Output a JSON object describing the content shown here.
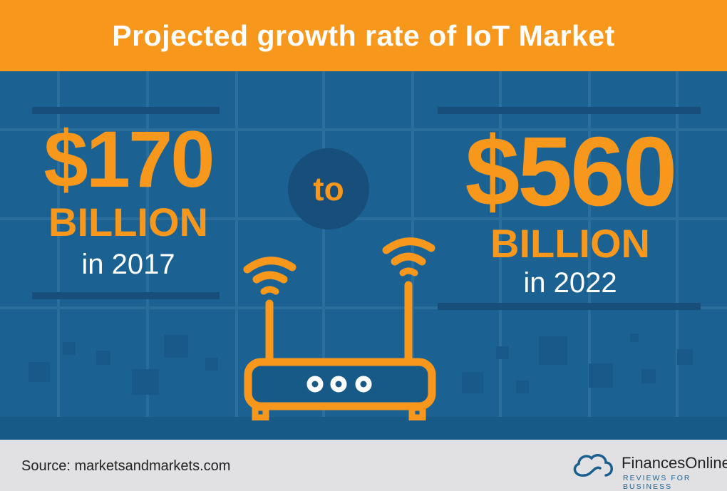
{
  "title": "Projected growth rate of IoT Market",
  "left": {
    "amount": "$170",
    "unit": "BILLION",
    "year_text": "in 2017"
  },
  "connector": "to",
  "right": {
    "amount": "$560",
    "unit": "BILLION",
    "year_text": "in 2022"
  },
  "footer": {
    "source": "Source: marketsandmarkets.com",
    "brand": "FinancesOnline",
    "tagline": "REVIEWS FOR BUSINESS"
  },
  "colors": {
    "accent": "#f7981d",
    "background": "#1b6293",
    "footer": "#e1e1e3"
  },
  "icons": [
    "wifi-router-icon",
    "cloud-logo-icon"
  ]
}
